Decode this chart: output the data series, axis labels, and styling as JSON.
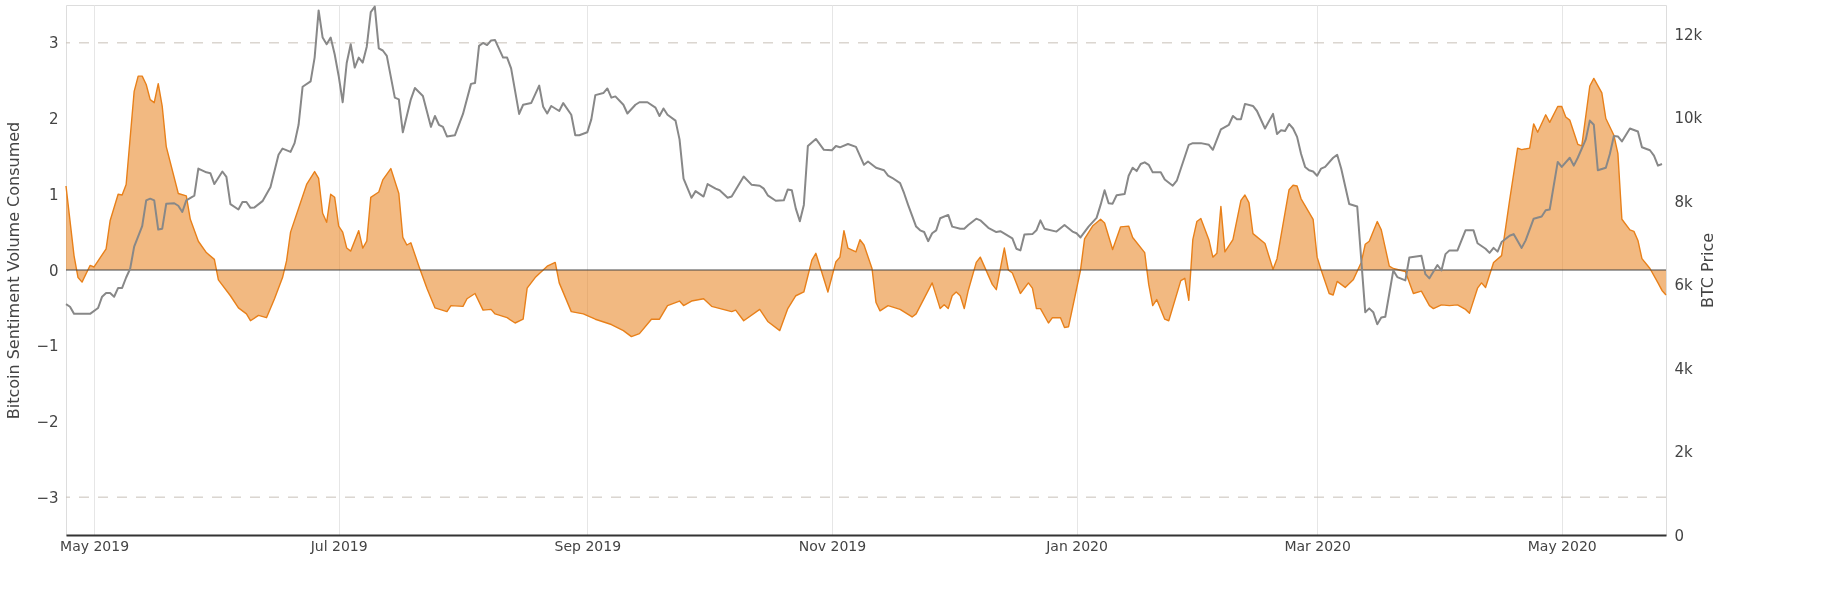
{
  "chart_data": {
    "type": "area",
    "ylabel": "Bitcoin Sentiment Volume Consumed",
    "y2label": "BTC Price",
    "xlim": [
      "2019-04-24",
      "2020-05-27"
    ],
    "xticks": [
      {
        "value": "2019-05-01",
        "label": "May 2019"
      },
      {
        "value": "2019-07-01",
        "label": "Jul 2019"
      },
      {
        "value": "2019-09-01",
        "label": "Sep 2019"
      },
      {
        "value": "2019-11-01",
        "label": "Nov 2019"
      },
      {
        "value": "2020-01-01",
        "label": "Jan 2020"
      },
      {
        "value": "2020-03-01",
        "label": "Mar 2020"
      },
      {
        "value": "2020-05-01",
        "label": "May 2020"
      }
    ],
    "ylim": [
      -3.5,
      3.5
    ],
    "yticks": [
      {
        "value": -3,
        "label": "−3"
      },
      {
        "value": -2,
        "label": "−2"
      },
      {
        "value": -1,
        "label": "−1"
      },
      {
        "value": 0,
        "label": "0"
      },
      {
        "value": 1,
        "label": "1"
      },
      {
        "value": 2,
        "label": "2"
      },
      {
        "value": 3,
        "label": "3"
      }
    ],
    "y2lim": [
      0,
      12700
    ],
    "y2ticks": [
      {
        "value": 0,
        "label": "0"
      },
      {
        "value": 2000,
        "label": "2k"
      },
      {
        "value": 4000,
        "label": "4k"
      },
      {
        "value": 6000,
        "label": "6k"
      },
      {
        "value": 8000,
        "label": "8k"
      },
      {
        "value": 10000,
        "label": "10k"
      },
      {
        "value": 12000,
        "label": "12k"
      }
    ],
    "grid": "x",
    "ref_lines": [
      {
        "axis": "y",
        "value": 3,
        "color": "#c8c0b8",
        "line_style": "dashed"
      },
      {
        "axis": "y",
        "value": -3,
        "color": "#c8c0b8",
        "line_style": "dashed"
      },
      {
        "axis": "y",
        "value": 0,
        "color": "#444444",
        "line_style": "solid"
      }
    ],
    "series": [
      {
        "color": "#e8801a",
        "x": [
          "2019-04-24",
          "2019-04-26",
          "2019-04-27",
          "2019-04-28",
          "2019-04-30",
          "2019-05-01",
          "2019-05-04",
          "2019-05-05",
          "2019-05-07",
          "2019-05-08",
          "2019-05-09",
          "2019-05-11",
          "2019-05-12",
          "2019-05-13",
          "2019-05-14",
          "2019-05-15",
          "2019-05-16",
          "2019-05-17",
          "2019-05-18",
          "2019-05-19",
          "2019-05-22",
          "2019-05-24",
          "2019-05-25",
          "2019-05-27",
          "2019-05-29",
          "2019-05-31",
          "2019-06-01",
          "2019-06-04",
          "2019-06-06",
          "2019-06-08",
          "2019-06-09",
          "2019-06-11",
          "2019-06-13",
          "2019-06-15",
          "2019-06-17",
          "2019-06-18",
          "2019-06-19",
          "2019-06-23",
          "2019-06-25",
          "2019-06-26",
          "2019-06-27",
          "2019-06-28",
          "2019-06-29",
          "2019-06-30",
          "2019-07-01",
          "2019-07-02",
          "2019-07-03",
          "2019-07-04",
          "2019-07-06",
          "2019-07-07",
          "2019-07-08",
          "2019-07-09",
          "2019-07-11",
          "2019-07-12",
          "2019-07-14",
          "2019-07-16",
          "2019-07-17",
          "2019-07-18",
          "2019-07-19",
          "2019-07-21",
          "2019-07-23",
          "2019-07-25",
          "2019-07-28",
          "2019-07-29",
          "2019-08-01",
          "2019-08-02",
          "2019-08-04",
          "2019-08-06",
          "2019-08-08",
          "2019-08-09",
          "2019-08-12",
          "2019-08-14",
          "2019-08-16",
          "2019-08-17",
          "2019-08-19",
          "2019-08-22",
          "2019-08-24",
          "2019-08-25",
          "2019-08-28",
          "2019-08-31",
          "2019-09-03",
          "2019-09-07",
          "2019-09-10",
          "2019-09-12",
          "2019-09-14",
          "2019-09-17",
          "2019-09-19",
          "2019-09-21",
          "2019-09-24",
          "2019-09-25",
          "2019-09-27",
          "2019-09-30",
          "2019-10-02",
          "2019-10-07",
          "2019-10-08",
          "2019-10-10",
          "2019-10-14",
          "2019-10-16",
          "2019-10-19",
          "2019-10-21",
          "2019-10-23",
          "2019-10-25",
          "2019-10-27",
          "2019-10-28",
          "2019-10-31",
          "2019-11-02",
          "2019-11-03",
          "2019-11-04",
          "2019-11-05",
          "2019-11-07",
          "2019-11-08",
          "2019-11-09",
          "2019-11-11",
          "2019-11-12",
          "2019-11-13",
          "2019-11-15",
          "2019-11-18",
          "2019-11-21",
          "2019-11-22",
          "2019-11-26",
          "2019-11-28",
          "2019-11-29",
          "2019-11-30",
          "2019-12-01",
          "2019-12-02",
          "2019-12-03",
          "2019-12-04",
          "2019-12-05",
          "2019-12-07",
          "2019-12-08",
          "2019-12-11",
          "2019-12-12",
          "2019-12-14",
          "2019-12-15",
          "2019-12-16",
          "2019-12-18",
          "2019-12-20",
          "2019-12-21",
          "2019-12-22",
          "2019-12-23",
          "2019-12-25",
          "2019-12-26",
          "2019-12-28",
          "2019-12-29",
          "2019-12-30",
          "2020-01-02",
          "2020-01-03",
          "2020-01-05",
          "2020-01-07",
          "2020-01-08",
          "2020-01-10",
          "2020-01-12",
          "2020-01-14",
          "2020-01-15",
          "2020-01-18",
          "2020-01-19",
          "2020-01-20",
          "2020-01-21",
          "2020-01-23",
          "2020-01-24",
          "2020-01-27",
          "2020-01-28",
          "2020-01-29",
          "2020-01-30",
          "2020-01-31",
          "2020-02-01",
          "2020-02-03",
          "2020-02-04",
          "2020-02-05",
          "2020-02-06",
          "2020-02-07",
          "2020-02-09",
          "2020-02-11",
          "2020-02-12",
          "2020-02-13",
          "2020-02-14",
          "2020-02-17",
          "2020-02-19",
          "2020-02-20",
          "2020-02-23",
          "2020-02-24",
          "2020-02-25",
          "2020-02-26",
          "2020-02-29",
          "2020-03-01",
          "2020-03-02",
          "2020-03-04",
          "2020-03-05",
          "2020-03-06",
          "2020-03-08",
          "2020-03-10",
          "2020-03-12",
          "2020-03-13",
          "2020-03-14",
          "2020-03-16",
          "2020-03-17",
          "2020-03-19",
          "2020-03-20",
          "2020-03-23",
          "2020-03-25",
          "2020-03-27",
          "2020-03-29",
          "2020-03-30",
          "2020-04-01",
          "2020-04-03",
          "2020-04-05",
          "2020-04-07",
          "2020-04-08",
          "2020-04-10",
          "2020-04-11",
          "2020-04-12",
          "2020-04-14",
          "2020-04-16",
          "2020-04-18",
          "2020-04-20",
          "2020-04-21",
          "2020-04-23",
          "2020-04-24",
          "2020-04-25",
          "2020-04-27",
          "2020-04-28",
          "2020-04-30",
          "2020-05-01",
          "2020-05-02",
          "2020-05-03",
          "2020-05-05",
          "2020-05-06",
          "2020-05-08",
          "2020-05-09",
          "2020-05-11",
          "2020-05-12",
          "2020-05-14",
          "2020-05-15",
          "2020-05-16",
          "2020-05-18",
          "2020-05-19",
          "2020-05-20",
          "2020-05-21",
          "2020-05-23",
          "2020-05-25",
          "2020-05-26",
          "2020-05-27"
        ],
        "values": [
          1.11,
          0.19,
          -0.1,
          -0.16,
          0.06,
          0.04,
          0.28,
          0.65,
          1.0,
          0.99,
          1.13,
          2.36,
          2.56,
          2.56,
          2.45,
          2.25,
          2.21,
          2.46,
          2.16,
          1.63,
          1.01,
          0.98,
          0.67,
          0.38,
          0.23,
          0.14,
          -0.13,
          -0.34,
          -0.5,
          -0.58,
          -0.67,
          -0.6,
          -0.63,
          -0.38,
          -0.1,
          0.12,
          0.5,
          1.13,
          1.3,
          1.21,
          0.75,
          0.63,
          1.0,
          0.96,
          0.58,
          0.5,
          0.29,
          0.25,
          0.52,
          0.29,
          0.38,
          0.96,
          1.03,
          1.19,
          1.34,
          1.01,
          0.43,
          0.33,
          0.36,
          0.05,
          -0.24,
          -0.5,
          -0.55,
          -0.47,
          -0.48,
          -0.38,
          -0.31,
          -0.53,
          -0.52,
          -0.58,
          -0.63,
          -0.7,
          -0.65,
          -0.24,
          -0.1,
          0.05,
          0.1,
          -0.17,
          -0.55,
          -0.58,
          -0.65,
          -0.72,
          -0.8,
          -0.88,
          -0.84,
          -0.65,
          -0.65,
          -0.47,
          -0.41,
          -0.47,
          -0.41,
          -0.38,
          -0.48,
          -0.55,
          -0.53,
          -0.67,
          -0.52,
          -0.68,
          -0.8,
          -0.51,
          -0.34,
          -0.29,
          0.13,
          0.22,
          -0.29,
          0.11,
          0.17,
          0.52,
          0.29,
          0.24,
          0.4,
          0.33,
          0.02,
          -0.43,
          -0.54,
          -0.47,
          -0.52,
          -0.62,
          -0.58,
          -0.17,
          -0.51,
          -0.46,
          -0.51,
          -0.34,
          -0.29,
          -0.34,
          -0.51,
          -0.27,
          0.1,
          0.17,
          -0.19,
          -0.26,
          0.29,
          0.0,
          -0.04,
          -0.31,
          -0.17,
          -0.24,
          -0.51,
          -0.51,
          -0.7,
          -0.63,
          -0.63,
          -0.76,
          -0.75,
          0.0,
          0.41,
          0.58,
          0.67,
          0.62,
          0.27,
          0.57,
          0.58,
          0.43,
          0.23,
          -0.19,
          -0.47,
          -0.39,
          -0.65,
          -0.67,
          -0.14,
          -0.11,
          -0.4,
          0.4,
          0.64,
          0.68,
          0.4,
          0.17,
          0.22,
          0.84,
          0.24,
          0.4,
          0.92,
          0.99,
          0.89,
          0.48,
          0.35,
          0.01,
          0.15,
          1.06,
          1.12,
          1.11,
          0.94,
          0.67,
          0.17,
          0.0,
          -0.31,
          -0.33,
          -0.15,
          -0.23,
          -0.13,
          0.1,
          0.34,
          0.38,
          0.64,
          0.53,
          0.05,
          0.02,
          -0.02,
          -0.31,
          -0.28,
          -0.47,
          -0.51,
          -0.46,
          -0.47,
          -0.46,
          -0.52,
          -0.57,
          -0.24,
          -0.17,
          -0.23,
          0.1,
          0.19,
          0.92,
          1.61,
          1.59,
          1.61,
          1.93,
          1.82,
          2.05,
          1.95,
          2.16,
          2.16,
          2.02,
          1.98,
          1.66,
          1.64,
          2.43,
          2.53,
          2.34,
          2.0,
          1.78,
          1.54,
          0.67,
          0.53,
          0.51,
          0.39,
          0.15,
          0.02,
          -0.17,
          -0.27,
          -0.33
        ]
      },
      {
        "type": "line",
        "axis": "y2",
        "color": "#888888",
        "x": [
          "2019-04-24",
          "2019-04-25",
          "2019-04-26",
          "2019-04-28",
          "2019-04-30",
          "2019-05-02",
          "2019-05-03",
          "2019-05-04",
          "2019-05-05",
          "2019-05-06",
          "2019-05-07",
          "2019-05-08",
          "2019-05-09",
          "2019-05-10",
          "2019-05-11",
          "2019-05-13",
          "2019-05-14",
          "2019-05-15",
          "2019-05-16",
          "2019-05-17",
          "2019-05-18",
          "2019-05-19",
          "2019-05-21",
          "2019-05-22",
          "2019-05-23",
          "2019-05-24",
          "2019-05-26",
          "2019-05-27",
          "2019-05-29",
          "2019-05-30",
          "2019-05-31",
          "2019-06-02",
          "2019-06-03",
          "2019-06-04",
          "2019-06-06",
          "2019-06-07",
          "2019-06-08",
          "2019-06-09",
          "2019-06-10",
          "2019-06-12",
          "2019-06-14",
          "2019-06-16",
          "2019-06-17",
          "2019-06-19",
          "2019-06-20",
          "2019-06-21",
          "2019-06-22",
          "2019-06-24",
          "2019-06-25",
          "2019-06-26",
          "2019-06-27",
          "2019-06-28",
          "2019-06-29",
          "2019-06-30",
          "2019-07-01",
          "2019-07-02",
          "2019-07-03",
          "2019-07-04",
          "2019-07-05",
          "2019-07-06",
          "2019-07-07",
          "2019-07-08",
          "2019-07-09",
          "2019-07-10",
          "2019-07-11",
          "2019-07-12",
          "2019-07-13",
          "2019-07-15",
          "2019-07-16",
          "2019-07-17",
          "2019-07-19",
          "2019-07-20",
          "2019-07-22",
          "2019-07-24",
          "2019-07-25",
          "2019-07-26",
          "2019-07-27",
          "2019-07-28",
          "2019-07-30",
          "2019-08-01",
          "2019-08-03",
          "2019-08-04",
          "2019-08-05",
          "2019-08-06",
          "2019-08-07",
          "2019-08-08",
          "2019-08-09",
          "2019-08-11",
          "2019-08-12",
          "2019-08-13",
          "2019-08-15",
          "2019-08-16",
          "2019-08-18",
          "2019-08-20",
          "2019-08-21",
          "2019-08-22",
          "2019-08-23",
          "2019-08-25",
          "2019-08-26",
          "2019-08-28",
          "2019-08-29",
          "2019-08-30",
          "2019-09-01",
          "2019-09-02",
          "2019-09-03",
          "2019-09-05",
          "2019-09-06",
          "2019-09-07",
          "2019-09-08",
          "2019-09-10",
          "2019-09-11",
          "2019-09-13",
          "2019-09-14",
          "2019-09-16",
          "2019-09-18",
          "2019-09-19",
          "2019-09-20",
          "2019-09-21",
          "2019-09-23",
          "2019-09-24",
          "2019-09-25",
          "2019-09-27",
          "2019-09-28",
          "2019-09-30",
          "2019-10-01",
          "2019-10-03",
          "2019-10-04",
          "2019-10-06",
          "2019-10-07",
          "2019-10-10",
          "2019-10-12",
          "2019-10-14",
          "2019-10-15",
          "2019-10-16",
          "2019-10-18",
          "2019-10-20",
          "2019-10-21",
          "2019-10-22",
          "2019-10-23",
          "2019-10-24",
          "2019-10-25",
          "2019-10-26",
          "2019-10-28",
          "2019-10-30",
          "2019-11-01",
          "2019-11-02",
          "2019-11-03",
          "2019-11-05",
          "2019-11-07",
          "2019-11-09",
          "2019-11-10",
          "2019-11-12",
          "2019-11-14",
          "2019-11-15",
          "2019-11-16",
          "2019-11-18",
          "2019-11-19",
          "2019-11-20",
          "2019-11-22",
          "2019-11-23",
          "2019-11-24",
          "2019-11-25",
          "2019-11-26",
          "2019-11-27",
          "2019-11-28",
          "2019-11-30",
          "2019-12-01",
          "2019-12-03",
          "2019-12-04",
          "2019-12-05",
          "2019-12-07",
          "2019-12-08",
          "2019-12-10",
          "2019-12-12",
          "2019-12-13",
          "2019-12-16",
          "2019-12-17",
          "2019-12-18",
          "2019-12-19",
          "2019-12-21",
          "2019-12-22",
          "2019-12-23",
          "2019-12-24",
          "2019-12-27",
          "2019-12-29",
          "2019-12-31",
          "2020-01-01",
          "2020-01-02",
          "2020-01-04",
          "2020-01-06",
          "2020-01-07",
          "2020-01-08",
          "2020-01-09",
          "2020-01-10",
          "2020-01-11",
          "2020-01-13",
          "2020-01-14",
          "2020-01-15",
          "2020-01-16",
          "2020-01-17",
          "2020-01-18",
          "2020-01-19",
          "2020-01-20",
          "2020-01-22",
          "2020-01-23",
          "2020-01-25",
          "2020-01-26",
          "2020-01-29",
          "2020-01-30",
          "2020-02-01",
          "2020-02-03",
          "2020-02-04",
          "2020-02-06",
          "2020-02-08",
          "2020-02-09",
          "2020-02-10",
          "2020-02-11",
          "2020-02-12",
          "2020-02-14",
          "2020-02-15",
          "2020-02-17",
          "2020-02-19",
          "2020-02-20",
          "2020-02-21",
          "2020-02-22",
          "2020-02-23",
          "2020-02-24",
          "2020-02-25",
          "2020-02-26",
          "2020-02-27",
          "2020-02-28",
          "2020-02-29",
          "2020-03-01",
          "2020-03-02",
          "2020-03-03",
          "2020-03-05",
          "2020-03-06",
          "2020-03-07",
          "2020-03-09",
          "2020-03-11",
          "2020-03-12",
          "2020-03-13",
          "2020-03-14",
          "2020-03-15",
          "2020-03-16",
          "2020-03-17",
          "2020-03-18",
          "2020-03-20",
          "2020-03-21",
          "2020-03-23",
          "2020-03-24",
          "2020-03-27",
          "2020-03-28",
          "2020-03-29",
          "2020-03-31",
          "2020-04-01",
          "2020-04-02",
          "2020-04-03",
          "2020-04-05",
          "2020-04-07",
          "2020-04-09",
          "2020-04-10",
          "2020-04-12",
          "2020-04-13",
          "2020-04-14",
          "2020-04-15",
          "2020-04-16",
          "2020-04-18",
          "2020-04-19",
          "2020-04-21",
          "2020-04-22",
          "2020-04-24",
          "2020-04-26",
          "2020-04-27",
          "2020-04-28",
          "2020-04-30",
          "2020-05-01",
          "2020-05-03",
          "2020-05-04",
          "2020-05-05",
          "2020-05-07",
          "2020-05-08",
          "2020-05-09",
          "2020-05-10",
          "2020-05-12",
          "2020-05-13",
          "2020-05-14",
          "2020-05-15",
          "2020-05-16",
          "2020-05-18",
          "2020-05-20",
          "2020-05-21",
          "2020-05-23",
          "2020-05-24",
          "2020-05-25",
          "2020-05-26"
        ],
        "values": [
          5530,
          5470,
          5300,
          5300,
          5300,
          5440,
          5710,
          5800,
          5800,
          5710,
          5920,
          5920,
          6170,
          6380,
          6910,
          7400,
          8020,
          8060,
          8020,
          7320,
          7340,
          7940,
          7950,
          7890,
          7740,
          8020,
          8130,
          8780,
          8690,
          8670,
          8410,
          8710,
          8580,
          7930,
          7800,
          7980,
          7980,
          7840,
          7850,
          8000,
          8340,
          9110,
          9260,
          9180,
          9390,
          9830,
          10740,
          10870,
          11440,
          12570,
          11920,
          11760,
          11920,
          11520,
          11000,
          10370,
          11310,
          11760,
          11200,
          11440,
          11320,
          11700,
          12530,
          12660,
          11660,
          11610,
          11480,
          10480,
          10440,
          9650,
          10440,
          10710,
          10520,
          9780,
          10040,
          9830,
          9780,
          9550,
          9580,
          10090,
          10810,
          10830,
          11720,
          11790,
          11740,
          11850,
          11860,
          11440,
          11440,
          11180,
          10090,
          10310,
          10350,
          10770,
          10260,
          10100,
          10280,
          10160,
          10350,
          10070,
          9580,
          9580,
          9650,
          9960,
          10540,
          10590,
          10700,
          10480,
          10510,
          10310,
          10100,
          10310,
          10370,
          10370,
          10240,
          10040,
          10220,
          10070,
          9930,
          9480,
          8540,
          8080,
          8240,
          8110,
          8410,
          8300,
          8260,
          8080,
          8110,
          8590,
          8390,
          8370,
          8300,
          8140,
          8010,
          8020,
          8280,
          8260,
          7820,
          7520,
          7910,
          9320,
          9490,
          9230,
          9220,
          9320,
          9290,
          9370,
          9300,
          8870,
          8950,
          8800,
          8740,
          8610,
          8560,
          8430,
          8190,
          7910,
          7390,
          7300,
          7260,
          7040,
          7230,
          7300,
          7590,
          7670,
          7390,
          7340,
          7340,
          7430,
          7580,
          7540,
          7360,
          7260,
          7280,
          7110,
          6860,
          6820,
          7200,
          7210,
          7300,
          7540,
          7340,
          7270,
          7430,
          7270,
          7230,
          7130,
          7390,
          7600,
          7910,
          8260,
          7950,
          7940,
          8140,
          8170,
          8610,
          8800,
          8720,
          8890,
          8930,
          8870,
          8690,
          8690,
          8520,
          8370,
          8490,
          9350,
          9390,
          9390,
          9350,
          9230,
          9720,
          9830,
          10040,
          9960,
          9960,
          10330,
          10280,
          10160,
          9740,
          10090,
          9610,
          9700,
          9680,
          9850,
          9740,
          9540,
          9130,
          8820,
          8740,
          8710,
          8610,
          8780,
          8820,
          9040,
          9110,
          8780,
          7930,
          7870,
          6600,
          5340,
          5430,
          5340,
          5050,
          5210,
          5230,
          6340,
          6180,
          6100,
          6650,
          6690,
          6250,
          6150,
          6470,
          6340,
          6730,
          6820,
          6820,
          7300,
          7300,
          6990,
          6860,
          6760,
          6880,
          6790,
          7020,
          7170,
          7210,
          6880,
          7060,
          7580,
          7630,
          7780,
          7800,
          8940,
          8820,
          9040,
          8850,
          9040,
          9480,
          9930,
          9830,
          8740,
          8800,
          9130,
          9560,
          9550,
          9430,
          9740,
          9670,
          9290,
          9220,
          9090,
          8850,
          8890
        ]
      }
    ]
  }
}
